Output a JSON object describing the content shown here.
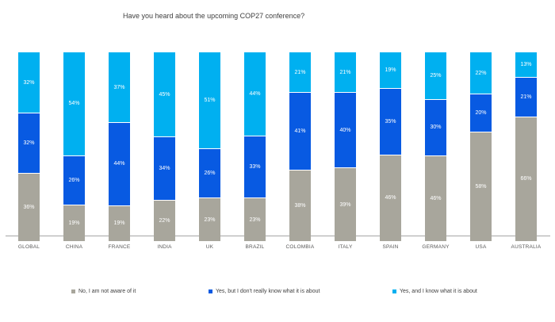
{
  "chart_data": {
    "type": "bar",
    "stacked": true,
    "percent_stacked": true,
    "title": "Have you heard about the upcoming COP27 conference?",
    "xlabel": "",
    "ylabel": "",
    "ylim": [
      0,
      100
    ],
    "grid": false,
    "legend_position": "bottom",
    "value_suffix": "%",
    "categories": [
      "GLOBAL",
      "CHINA",
      "FRANCE",
      "INDIA",
      "UK",
      "BRAZIL",
      "COLOMBIA",
      "ITALY",
      "SPAIN",
      "GERMANY",
      "USA",
      "AUSTRALIA"
    ],
    "series": [
      {
        "name": "No, I am not aware of it",
        "color": "#a8a69c",
        "values": [
          36,
          19,
          19,
          22,
          23,
          23,
          38,
          39,
          46,
          46,
          58,
          66
        ]
      },
      {
        "name": "Yes, but I don't really know what it is about",
        "color": "#085ae2",
        "values": [
          32,
          26,
          44,
          34,
          26,
          33,
          41,
          40,
          35,
          30,
          20,
          21
        ]
      },
      {
        "name": "Yes, and I know what it is about",
        "color": "#00b0f0",
        "values": [
          32,
          54,
          37,
          45,
          51,
          44,
          21,
          21,
          19,
          25,
          22,
          13
        ]
      }
    ]
  }
}
